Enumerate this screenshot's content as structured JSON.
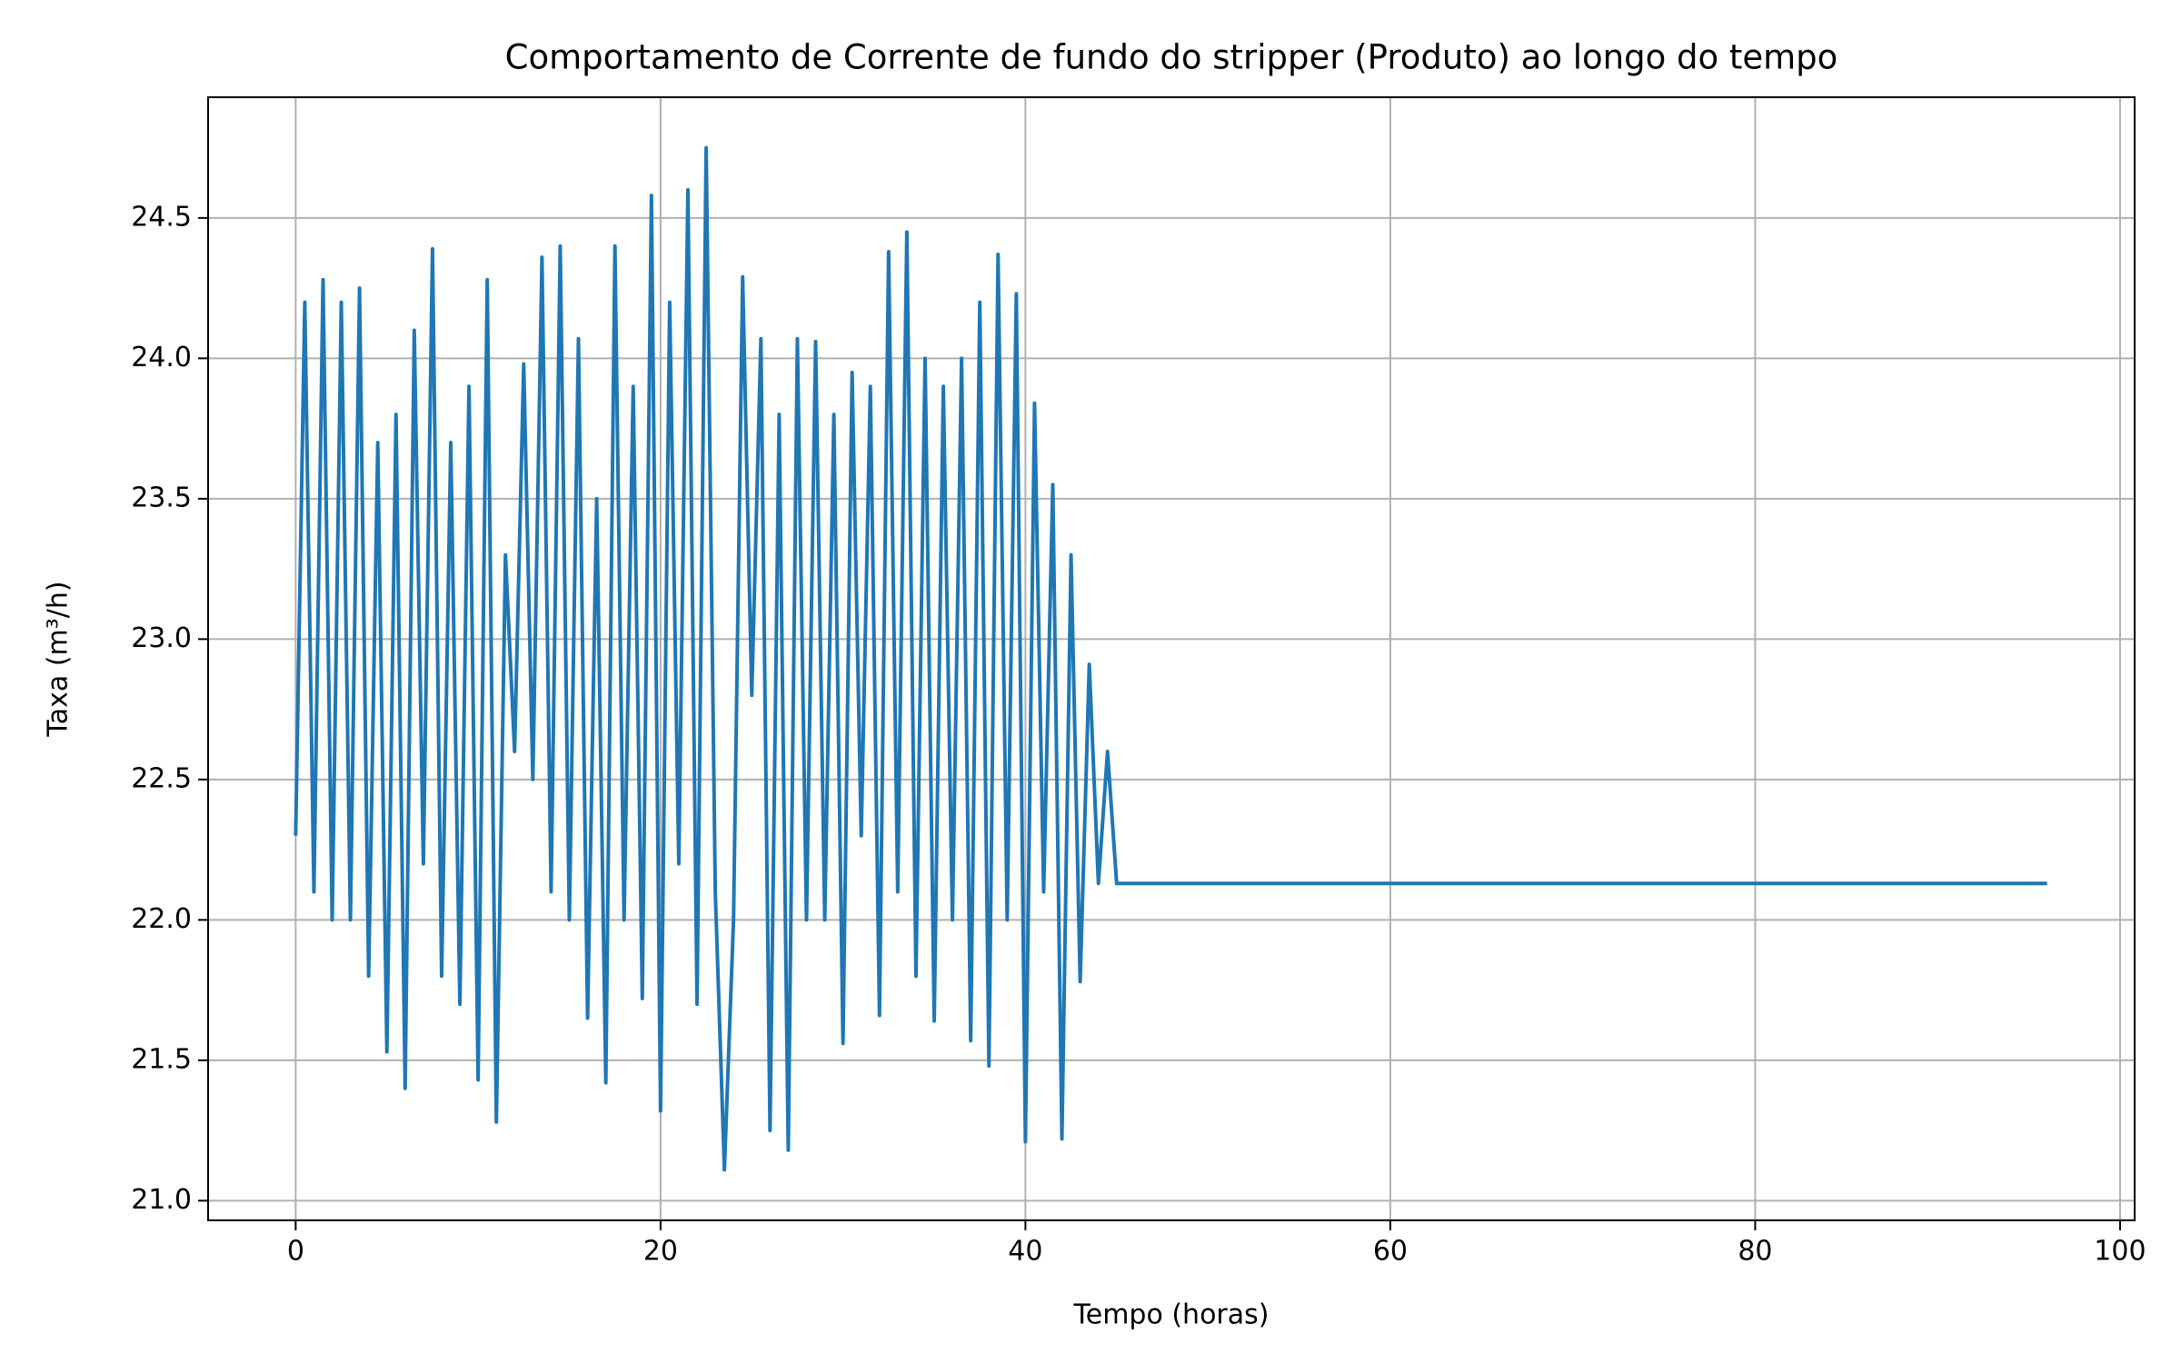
{
  "chart_data": {
    "type": "line",
    "title": "Comportamento de Corrente de fundo do stripper (Produto) ao longo do tempo",
    "xlabel": "Tempo (horas)",
    "ylabel": "Taxa (m³/h)",
    "x": [
      0,
      0.5,
      1,
      1.5,
      2,
      2.5,
      3,
      3.5,
      4,
      4.5,
      5,
      5.5,
      6,
      6.5,
      7,
      7.5,
      8,
      8.5,
      9,
      9.5,
      10,
      10.5,
      11,
      11.5,
      12,
      12.5,
      13,
      13.5,
      14,
      14.5,
      15,
      15.5,
      16,
      16.5,
      17,
      17.5,
      18,
      18.5,
      19,
      19.5,
      20,
      20.5,
      21,
      21.5,
      22,
      22.5,
      23,
      23.5,
      24,
      24.5,
      25,
      25.5,
      26,
      26.5,
      27,
      27.5,
      28,
      28.5,
      29,
      29.5,
      30,
      30.5,
      31,
      31.5,
      32,
      32.5,
      33,
      33.5,
      34,
      34.5,
      35,
      35.5,
      36,
      36.5,
      37,
      37.5,
      38,
      38.5,
      39,
      39.5,
      40,
      40.5,
      41,
      41.5,
      42,
      42.5,
      43,
      43.5,
      44,
      44.5,
      45,
      46,
      96
    ],
    "series": [
      {
        "name": "Corrente de fundo do stripper (Produto)",
        "color": "#1f77b4",
        "values": [
          22.3,
          24.2,
          22.1,
          24.28,
          22.0,
          24.2,
          22.0,
          24.25,
          21.8,
          23.7,
          21.53,
          23.8,
          21.4,
          24.1,
          22.2,
          24.39,
          21.8,
          23.7,
          21.7,
          23.9,
          21.43,
          24.28,
          21.28,
          23.3,
          22.6,
          23.98,
          22.5,
          24.36,
          22.1,
          24.4,
          22.0,
          24.07,
          21.65,
          23.5,
          21.42,
          24.4,
          22.0,
          23.9,
          21.72,
          24.58,
          21.32,
          24.2,
          22.2,
          24.6,
          21.7,
          24.75,
          22.1,
          21.11,
          22.0,
          24.29,
          22.8,
          24.07,
          21.25,
          23.8,
          21.18,
          24.07,
          22.0,
          24.06,
          22.0,
          23.8,
          21.56,
          23.95,
          22.3,
          23.9,
          21.66,
          24.38,
          22.1,
          24.45,
          21.8,
          24.0,
          21.64,
          23.9,
          22.0,
          24.0,
          21.57,
          24.2,
          21.48,
          24.37,
          22.0,
          24.23,
          21.21,
          23.84,
          22.1,
          23.55,
          21.22,
          23.3,
          21.78,
          22.91,
          22.13,
          22.6,
          22.13,
          22.13,
          22.13
        ]
      }
    ],
    "xlim": [
      -4.8,
      100.8
    ],
    "ylim": [
      20.93,
      24.93
    ],
    "xticks": [
      0,
      20,
      40,
      60,
      80,
      100
    ],
    "yticks": [
      {
        "value": 21,
        "label": "21.0"
      },
      21.5,
      {
        "value": 22,
        "label": "22.0"
      },
      22.5,
      {
        "value": 23,
        "label": "23.0"
      },
      23.5,
      {
        "value": 24,
        "label": "24.0"
      },
      24.5
    ],
    "grid": true
  }
}
